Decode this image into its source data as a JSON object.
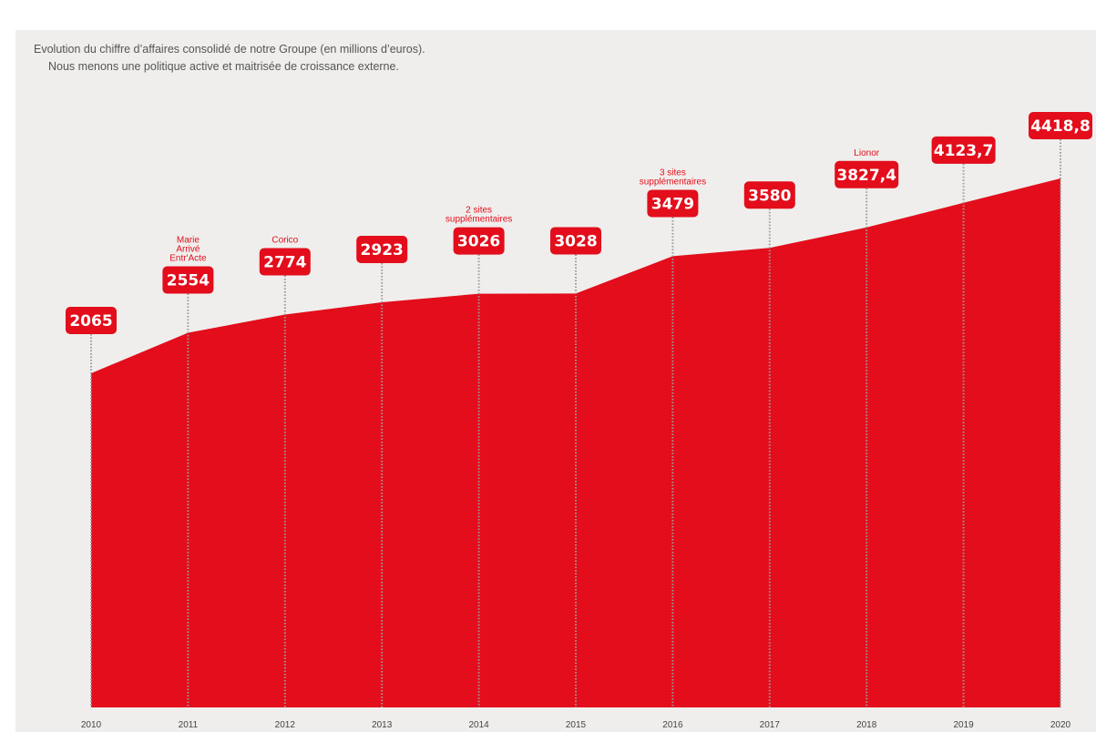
{
  "title": {
    "line1": "Evolution du chiffre d’affaires consolidé de notre Groupe (en millions d’euros).",
    "line2": "Nous menons une politique active et maitrisée de croissance externe."
  },
  "colors": {
    "area": "#e30d1b",
    "badge": "#e30d1b",
    "annotation": "#e30d1b",
    "background": "#efeeec",
    "dotted_line": "#9a9a9a"
  },
  "chart_data": {
    "type": "area",
    "categories": [
      "2010",
      "2011",
      "2012",
      "2013",
      "2014",
      "2015",
      "2016",
      "2017",
      "2018",
      "2019",
      "2020"
    ],
    "values": [
      2065,
      2554,
      2774,
      2923,
      3026,
      3028,
      3479,
      3580,
      3827.4,
      4123.7,
      4418.8
    ],
    "value_labels": [
      "2065",
      "2554",
      "2774",
      "2923",
      "3026",
      "3028",
      "3479",
      "3580",
      "3827,4",
      "4123,7",
      "4418,8"
    ],
    "annotations": [
      {
        "year": "2011",
        "lines": [
          "Marie",
          "Arrivé",
          "Entr'Acte"
        ]
      },
      {
        "year": "2012",
        "lines": [
          "Corico"
        ]
      },
      {
        "year": "2014",
        "lines": [
          "2 sites",
          "supplémentaires"
        ]
      },
      {
        "year": "2016",
        "lines": [
          "3 sites",
          "supplémentaires"
        ]
      },
      {
        "year": "2018",
        "lines": [
          "Lionor"
        ]
      }
    ],
    "grid": false,
    "legend": "none"
  }
}
